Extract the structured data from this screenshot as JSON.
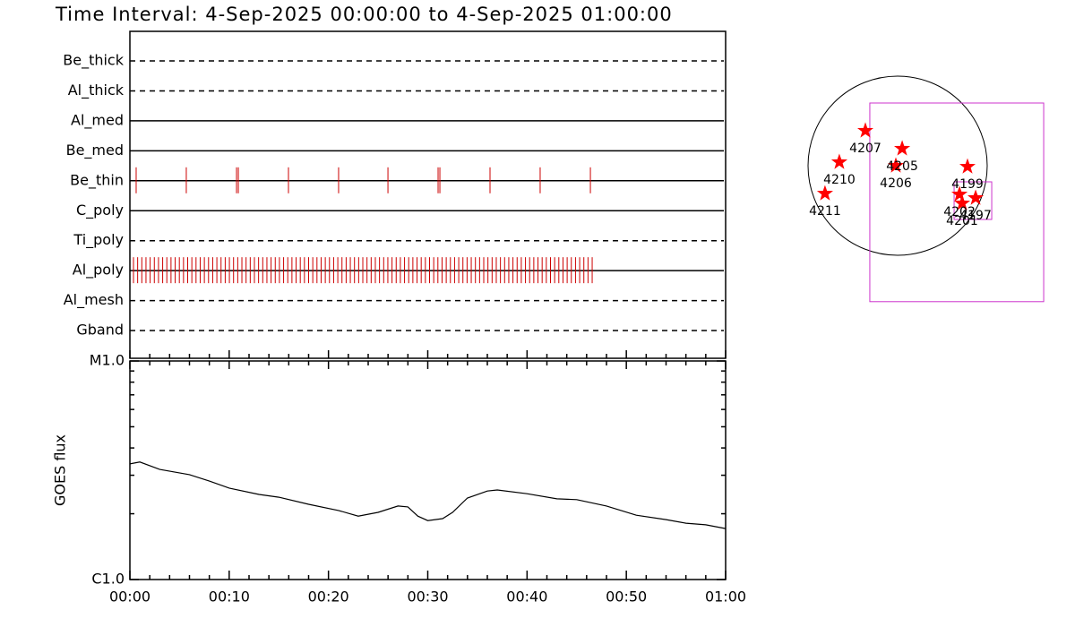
{
  "title": "Time Interval:  4-Sep-2025 00:00:00 to  4-Sep-2025 01:00:00",
  "chart_data": [
    {
      "type": "timeline",
      "color": "#cc0000",
      "xlim": [
        0,
        60
      ],
      "filters": [
        {
          "name": "Be_thick",
          "style": "dashed",
          "times": []
        },
        {
          "name": "Al_thick",
          "style": "dashed",
          "times": []
        },
        {
          "name": "Al_med",
          "style": "solid",
          "times": []
        },
        {
          "name": "Be_med",
          "style": "solid",
          "times": []
        },
        {
          "name": "Be_thin",
          "style": "solid",
          "times": [
            0.63,
            5.68,
            10.74,
            10.92,
            15.97,
            21.02,
            25.99,
            31.04,
            31.22,
            36.27,
            41.32,
            46.38
          ]
        },
        {
          "name": "C_poly",
          "style": "solid",
          "times": []
        },
        {
          "name": "Ti_poly",
          "style": "dashed",
          "times": []
        },
        {
          "name": "Al_poly",
          "style": "solid",
          "times": [
            0.36,
            0.78,
            1.2,
            1.62,
            2.04,
            2.46,
            2.88,
            3.3,
            3.72,
            4.14,
            4.56,
            4.98,
            5.4,
            5.82,
            6.24,
            6.66,
            7.08,
            7.5,
            7.92,
            8.34,
            8.76,
            9.18,
            9.6,
            10.02,
            10.44,
            10.86,
            11.28,
            11.7,
            12.12,
            12.54,
            12.96,
            13.38,
            13.8,
            14.22,
            14.64,
            15.06,
            15.48,
            15.9,
            16.32,
            16.74,
            17.16,
            17.58,
            18.0,
            18.42,
            18.84,
            19.26,
            19.68,
            20.1,
            20.52,
            20.94,
            21.36,
            21.78,
            22.2,
            22.62,
            23.04,
            23.46,
            23.88,
            24.3,
            24.72,
            25.14,
            25.56,
            25.98,
            26.4,
            26.82,
            27.24,
            27.66,
            28.08,
            28.5,
            28.92,
            29.34,
            29.76,
            30.18,
            30.6,
            31.02,
            31.44,
            31.86,
            32.28,
            32.7,
            33.12,
            33.54,
            33.96,
            34.38,
            34.8,
            35.22,
            35.64,
            36.06,
            36.48,
            36.9,
            37.32,
            37.74,
            38.16,
            38.58,
            39.0,
            39.42,
            39.84,
            40.26,
            40.68,
            41.1,
            41.52,
            41.94,
            42.36,
            42.78,
            43.2,
            43.62,
            44.04,
            44.46,
            44.88,
            45.3,
            45.72,
            46.14,
            46.56
          ]
        },
        {
          "name": "Al_mesh",
          "style": "dashed",
          "times": []
        },
        {
          "name": "Gband",
          "style": "dashed",
          "times": []
        }
      ]
    },
    {
      "type": "line",
      "ylabel": "GOES flux",
      "color": "#000000",
      "log_y": true,
      "xlim": [
        0,
        60
      ],
      "ylim": [
        1e-06,
        1e-05
      ],
      "xticks": [
        {
          "value": 0,
          "label": "00:00"
        },
        {
          "value": 10,
          "label": "00:10"
        },
        {
          "value": 20,
          "label": "00:20"
        },
        {
          "value": 30,
          "label": "00:30"
        },
        {
          "value": 40,
          "label": "00:40"
        },
        {
          "value": 50,
          "label": "00:50"
        },
        {
          "value": 60,
          "label": "01:00"
        }
      ],
      "xminor": [
        2,
        4,
        6,
        8,
        12,
        14,
        16,
        18,
        22,
        24,
        26,
        28,
        32,
        34,
        36,
        38,
        42,
        44,
        46,
        48,
        52,
        54,
        56,
        58
      ],
      "yticks": [
        {
          "value": 1e-06,
          "label": "C1.0"
        },
        {
          "value": 1e-05,
          "label": "M1.0"
        }
      ],
      "yminor": [
        2e-06,
        3e-06,
        4e-06,
        5e-06,
        6e-06,
        7e-06,
        8e-06,
        9e-06
      ],
      "x": [
        0,
        1,
        3,
        6,
        8,
        10,
        13,
        15,
        18,
        21,
        23,
        25,
        27,
        28,
        29,
        30,
        31.5,
        32.5,
        34,
        36,
        37,
        40,
        43,
        45,
        48,
        51,
        54,
        56,
        58,
        60
      ],
      "values": [
        3.38e-06,
        3.45e-06,
        3.19e-06,
        3.02e-06,
        2.82e-06,
        2.62e-06,
        2.45e-06,
        2.38e-06,
        2.21e-06,
        2.07e-06,
        1.95e-06,
        2.03e-06,
        2.17e-06,
        2.15e-06,
        1.95e-06,
        1.86e-06,
        1.9e-06,
        2.03e-06,
        2.36e-06,
        2.54e-06,
        2.57e-06,
        2.47e-06,
        2.34e-06,
        2.32e-06,
        2.17e-06,
        1.97e-06,
        1.88e-06,
        1.81e-06,
        1.78e-06,
        1.71e-06
      ]
    },
    {
      "type": "scatter",
      "color": "#ff0000",
      "limb_radius": 950,
      "box_color": "#cc33cc",
      "boxes": [
        [
          -295,
          -1442,
          1549,
          665
        ],
        [
          599,
          -570,
          998,
          -171
        ]
      ],
      "labels": [
        "4207",
        "4205",
        "4206",
        "4210",
        "4211",
        "4199",
        "4202",
        "4201",
        "4197"
      ],
      "x": [
        -342,
        48,
        -19,
        -618,
        -770,
        741,
        656,
        684,
        827
      ],
      "values": [
        371,
        181,
        0,
        38,
        -295,
        -10,
        -304,
        -399,
        -342
      ]
    }
  ]
}
